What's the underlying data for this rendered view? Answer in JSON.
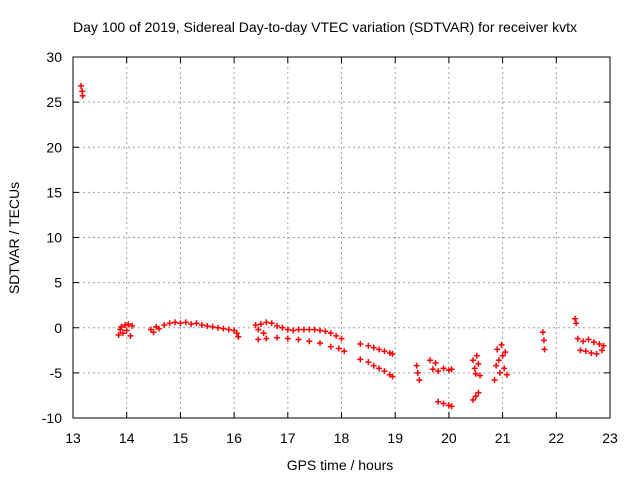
{
  "chart_data": {
    "type": "scatter",
    "title": "Day 100 of 2019, Sidereal Day-to-day VTEC variation (SDTVAR) for receiver kvtx",
    "xlabel": "GPS time / hours",
    "ylabel": "SDTVAR / TECUs",
    "xlim": [
      13,
      23
    ],
    "ylim": [
      -10,
      30
    ],
    "xticks": [
      "13",
      "14",
      "15",
      "16",
      "17",
      "18",
      "19",
      "20",
      "21",
      "22",
      "23"
    ],
    "yticks": [
      "-10",
      "-5",
      "0",
      "5",
      "10",
      "15",
      "20",
      "25",
      "30"
    ],
    "grid": true,
    "marker": "+",
    "marker_color": "#ff0000",
    "series": [
      {
        "name": "SDTVAR",
        "points": [
          [
            13.15,
            26.8
          ],
          [
            13.17,
            26.2
          ],
          [
            13.18,
            25.7
          ],
          [
            13.85,
            -0.8
          ],
          [
            13.88,
            -0.2
          ],
          [
            13.9,
            0.1
          ],
          [
            13.93,
            -0.6
          ],
          [
            13.97,
            0.3
          ],
          [
            14.0,
            -0.3
          ],
          [
            14.03,
            0.4
          ],
          [
            14.07,
            -0.9
          ],
          [
            14.1,
            0.2
          ],
          [
            14.45,
            -0.2
          ],
          [
            14.5,
            -0.5
          ],
          [
            14.55,
            0.1
          ],
          [
            14.6,
            -0.1
          ],
          [
            14.7,
            0.3
          ],
          [
            14.8,
            0.5
          ],
          [
            14.9,
            0.6
          ],
          [
            15.0,
            0.5
          ],
          [
            15.1,
            0.6
          ],
          [
            15.2,
            0.4
          ],
          [
            15.3,
            0.5
          ],
          [
            15.4,
            0.3
          ],
          [
            15.5,
            0.2
          ],
          [
            15.6,
            0.1
          ],
          [
            15.7,
            0.0
          ],
          [
            15.8,
            -0.1
          ],
          [
            15.9,
            -0.2
          ],
          [
            16.0,
            -0.3
          ],
          [
            16.05,
            -0.6
          ],
          [
            16.08,
            -1.0
          ],
          [
            16.4,
            0.3
          ],
          [
            16.45,
            -0.2
          ],
          [
            16.5,
            0.4
          ],
          [
            16.55,
            -0.6
          ],
          [
            16.6,
            0.6
          ],
          [
            16.7,
            0.5
          ],
          [
            16.8,
            0.2
          ],
          [
            16.9,
            0.0
          ],
          [
            17.0,
            -0.2
          ],
          [
            17.1,
            -0.3
          ],
          [
            17.2,
            -0.2
          ],
          [
            17.3,
            -0.2
          ],
          [
            17.4,
            -0.2
          ],
          [
            17.5,
            -0.2
          ],
          [
            17.6,
            -0.3
          ],
          [
            17.7,
            -0.4
          ],
          [
            17.8,
            -0.6
          ],
          [
            17.9,
            -0.9
          ],
          [
            18.0,
            -1.2
          ],
          [
            16.45,
            -1.3
          ],
          [
            16.6,
            -1.2
          ],
          [
            16.8,
            -1.1
          ],
          [
            17.0,
            -1.2
          ],
          [
            17.2,
            -1.3
          ],
          [
            17.4,
            -1.5
          ],
          [
            17.6,
            -1.7
          ],
          [
            17.8,
            -2.1
          ],
          [
            17.95,
            -2.3
          ],
          [
            18.05,
            -2.6
          ],
          [
            18.35,
            -1.8
          ],
          [
            18.5,
            -2.0
          ],
          [
            18.6,
            -2.2
          ],
          [
            18.7,
            -2.4
          ],
          [
            18.8,
            -2.6
          ],
          [
            18.9,
            -2.8
          ],
          [
            18.95,
            -2.9
          ],
          [
            18.35,
            -3.5
          ],
          [
            18.5,
            -3.8
          ],
          [
            18.6,
            -4.2
          ],
          [
            18.7,
            -4.5
          ],
          [
            18.8,
            -4.8
          ],
          [
            18.9,
            -5.2
          ],
          [
            18.95,
            -5.4
          ],
          [
            19.4,
            -4.2
          ],
          [
            19.42,
            -5.0
          ],
          [
            19.45,
            -5.8
          ],
          [
            19.65,
            -3.6
          ],
          [
            19.7,
            -4.6
          ],
          [
            19.75,
            -3.9
          ],
          [
            19.8,
            -4.8
          ],
          [
            19.9,
            -4.5
          ],
          [
            20.0,
            -4.7
          ],
          [
            20.05,
            -4.6
          ],
          [
            19.8,
            -8.2
          ],
          [
            19.9,
            -8.4
          ],
          [
            20.0,
            -8.6
          ],
          [
            20.05,
            -8.7
          ],
          [
            20.45,
            -8.0
          ],
          [
            20.5,
            -7.6
          ],
          [
            20.55,
            -7.2
          ],
          [
            20.45,
            -3.6
          ],
          [
            20.48,
            -4.5
          ],
          [
            20.5,
            -5.1
          ],
          [
            20.52,
            -3.1
          ],
          [
            20.55,
            -4.0
          ],
          [
            20.58,
            -5.3
          ],
          [
            20.85,
            -5.8
          ],
          [
            20.88,
            -4.2
          ],
          [
            20.9,
            -2.4
          ],
          [
            20.93,
            -3.6
          ],
          [
            20.95,
            -5.0
          ],
          [
            20.98,
            -1.9
          ],
          [
            21.0,
            -3.1
          ],
          [
            21.03,
            -4.5
          ],
          [
            21.05,
            -2.7
          ],
          [
            21.08,
            -5.2
          ],
          [
            21.75,
            -0.5
          ],
          [
            21.77,
            -1.4
          ],
          [
            21.78,
            -2.4
          ],
          [
            22.35,
            1.0
          ],
          [
            22.37,
            0.5
          ],
          [
            22.4,
            -1.2
          ],
          [
            22.45,
            -2.5
          ],
          [
            22.5,
            -1.5
          ],
          [
            22.55,
            -2.6
          ],
          [
            22.6,
            -1.3
          ],
          [
            22.65,
            -2.8
          ],
          [
            22.7,
            -1.6
          ],
          [
            22.75,
            -2.9
          ],
          [
            22.8,
            -1.8
          ],
          [
            22.85,
            -2.5
          ],
          [
            22.88,
            -2.0
          ]
        ]
      }
    ]
  }
}
